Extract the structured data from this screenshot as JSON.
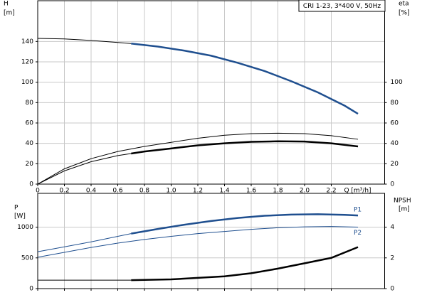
{
  "chart_data": [
    {
      "type": "line",
      "title": "CRI 1-23, 3*400 V, 50Hz",
      "y_label": "H",
      "y_unit": "[m]",
      "y2_label": "eta",
      "y2_unit": "[%]",
      "x_label": "Q [m³/h]",
      "xlim": [
        0,
        2.6
      ],
      "xticks": [
        0,
        0.2,
        0.4,
        0.6,
        0.8,
        {
          "value": 1,
          "label": "1.0"
        },
        1.2,
        1.4,
        1.6,
        1.8,
        {
          "value": 2,
          "label": "2.0"
        },
        2.2
      ],
      "ylim": [
        0,
        180
      ],
      "yticks": [
        0,
        20,
        40,
        60,
        80,
        100,
        120,
        140
      ],
      "y2lim": [
        0,
        180
      ],
      "y2ticks": [
        0,
        20,
        40,
        60,
        80,
        100
      ],
      "grid": true,
      "xtick_labels": true,
      "series": [
        {
          "x": [
            0,
            0.2,
            0.4,
            0.6,
            0.7
          ],
          "values": [
            143,
            142.5,
            141,
            139,
            138
          ],
          "color": "#000000",
          "line_width": 1
        },
        {
          "x": [
            0.7,
            0.9,
            1.1,
            1.3,
            1.5,
            1.7,
            1.9,
            2.1,
            2.3,
            2.4
          ],
          "values": [
            138,
            135,
            131,
            126,
            119,
            111,
            101,
            90,
            77,
            69
          ],
          "color": "#1f4f8f",
          "line_width": 2.5
        },
        {
          "axis": "y2",
          "x": [
            0,
            0.2,
            0.4,
            0.6,
            0.8,
            1.0,
            1.2,
            1.4,
            1.6,
            1.8,
            2.0,
            2.2,
            2.4
          ],
          "values": [
            0,
            15,
            25,
            32,
            37,
            41,
            45,
            48,
            49.5,
            50,
            49.5,
            47.5,
            44
          ],
          "color": "#000000",
          "line_width": 1
        },
        {
          "axis": "y2",
          "x": [
            0,
            0.2,
            0.4,
            0.6,
            0.7
          ],
          "values": [
            0,
            13,
            22,
            28,
            30
          ],
          "color": "#000000",
          "line_width": 1
        },
        {
          "axis": "y2",
          "x": [
            0.7,
            0.8,
            1.0,
            1.2,
            1.4,
            1.6,
            1.8,
            2.0,
            2.2,
            2.4
          ],
          "values": [
            30,
            32,
            35,
            38,
            40,
            41.5,
            42,
            41.8,
            40,
            37
          ],
          "color": "#000000",
          "line_width": 2.5
        }
      ]
    },
    {
      "type": "line",
      "y_label": "P",
      "y_unit": "[W]",
      "y2_label": "NPSH",
      "y2_unit": "[m]",
      "xlim": [
        0,
        2.6
      ],
      "xticks": [
        0,
        0.2,
        0.4,
        0.6,
        0.8,
        1,
        1.2,
        1.4,
        1.6,
        1.8,
        2,
        2.2
      ],
      "ylim": [
        0,
        1550
      ],
      "yticks": [
        0,
        500,
        1000
      ],
      "y2lim": [
        0,
        6.2
      ],
      "y2ticks": [
        0,
        2,
        4
      ],
      "grid": true,
      "xtick_labels": false,
      "series": [
        {
          "x": [
            0,
            0.2,
            0.4,
            0.6,
            0.7
          ],
          "values": [
            600,
            680,
            760,
            850,
            895
          ],
          "color": "#1f4f8f",
          "line_width": 1
        },
        {
          "name": "P1",
          "x": [
            0.7,
            0.9,
            1.1,
            1.3,
            1.5,
            1.7,
            1.9,
            2.1,
            2.3,
            2.4
          ],
          "values": [
            895,
            970,
            1040,
            1100,
            1150,
            1185,
            1205,
            1210,
            1200,
            1190
          ],
          "color": "#1f4f8f",
          "line_width": 2.5
        },
        {
          "name": "P2",
          "x": [
            0,
            0.2,
            0.4,
            0.6,
            0.8,
            1.0,
            1.2,
            1.4,
            1.6,
            1.8,
            2.0,
            2.2,
            2.4
          ],
          "values": [
            510,
            590,
            670,
            740,
            800,
            850,
            895,
            930,
            965,
            990,
            1005,
            1010,
            1000
          ],
          "color": "#1f4f8f",
          "line_width": 1
        },
        {
          "axis": "y2",
          "x": [
            0,
            0.7
          ],
          "values": [
            0.55,
            0.55
          ],
          "color": "#000000",
          "line_width": 1
        },
        {
          "axis": "y2",
          "x": [
            0.7,
            1.0,
            1.2,
            1.4,
            1.6,
            1.8,
            2.0,
            2.2,
            2.4
          ],
          "values": [
            0.55,
            0.6,
            0.7,
            0.8,
            1.0,
            1.3,
            1.65,
            2.0,
            2.7
          ],
          "color": "#000000",
          "line_width": 2.5
        }
      ]
    }
  ]
}
